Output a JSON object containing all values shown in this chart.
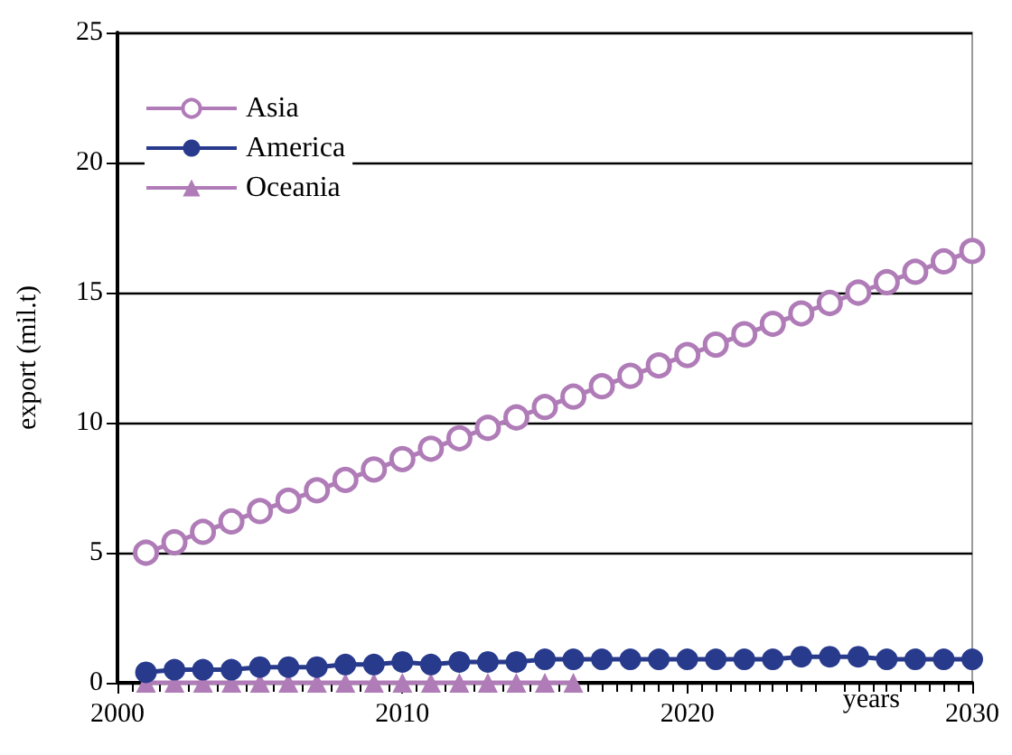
{
  "chart_data": {
    "type": "line",
    "xlabel": "years",
    "ylabel": "export (mil.t)",
    "x": [
      2001,
      2002,
      2003,
      2004,
      2005,
      2006,
      2007,
      2008,
      2009,
      2010,
      2011,
      2012,
      2013,
      2014,
      2015,
      2016,
      2017,
      2018,
      2019,
      2020,
      2021,
      2022,
      2023,
      2024,
      2025,
      2026,
      2027,
      2028,
      2029,
      2030
    ],
    "series": [
      {
        "name": "Asia",
        "color": "#b07cb8",
        "marker": "circle",
        "values": [
          5.0,
          5.4,
          5.8,
          6.2,
          6.6,
          7.0,
          7.4,
          7.8,
          8.2,
          8.6,
          9.0,
          9.4,
          9.8,
          10.2,
          10.6,
          11.0,
          11.4,
          11.8,
          12.2,
          12.6,
          13.0,
          13.4,
          13.8,
          14.2,
          14.6,
          15.0,
          15.4,
          15.8,
          16.2,
          16.6
        ]
      },
      {
        "name": "America",
        "color": "#283a8c",
        "marker": "circle",
        "values": [
          0.4,
          0.5,
          0.5,
          0.5,
          0.6,
          0.6,
          0.6,
          0.7,
          0.7,
          0.8,
          0.7,
          0.8,
          0.8,
          0.8,
          0.9,
          0.9,
          0.9,
          0.9,
          0.9,
          0.9,
          0.9,
          0.9,
          0.9,
          1.0,
          1.0,
          1.0,
          0.9,
          0.9,
          0.9,
          0.9
        ]
      },
      {
        "name": "Oceania",
        "color": "#b07cb8",
        "marker": "triangle",
        "values": [
          0,
          0,
          0,
          0,
          0,
          0,
          0,
          0,
          0,
          0,
          0,
          0,
          0,
          0,
          0,
          0,
          null,
          null,
          null,
          null,
          null,
          null,
          null,
          null,
          null,
          null,
          null,
          null,
          null,
          null
        ]
      }
    ],
    "xlim": [
      2000,
      2030
    ],
    "xticks": [
      2000,
      2010,
      2020,
      2030
    ],
    "ylim": [
      0,
      25
    ],
    "yticks": [
      0,
      5,
      10,
      15,
      20,
      25
    ],
    "grid": "y",
    "legend": "top left"
  }
}
